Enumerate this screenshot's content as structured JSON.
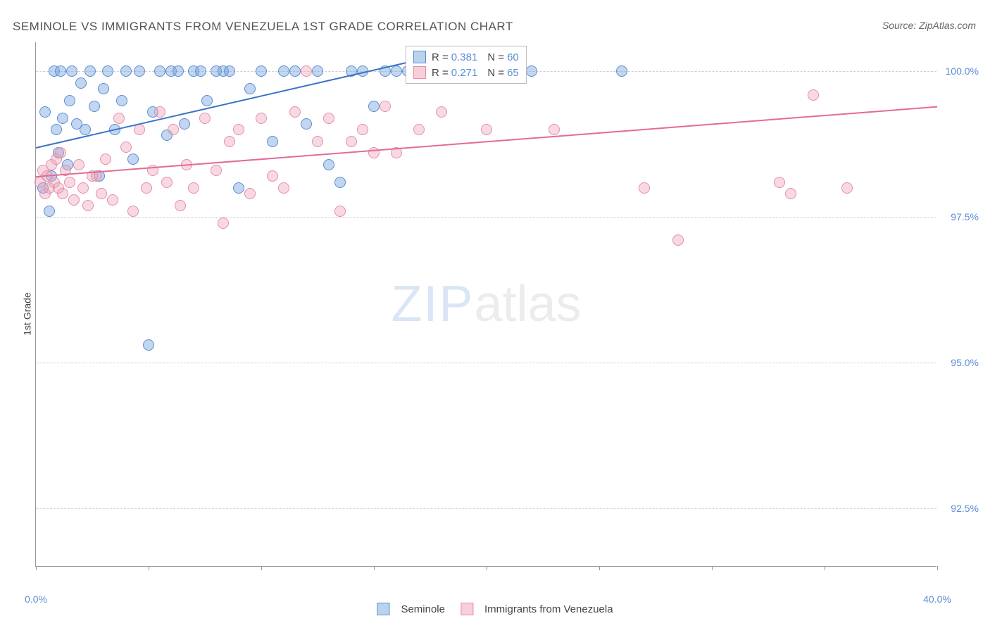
{
  "title": "SEMINOLE VS IMMIGRANTS FROM VENEZUELA 1ST GRADE CORRELATION CHART",
  "source": "Source: ZipAtlas.com",
  "ylabel": "1st Grade",
  "watermark": {
    "zip": "ZIP",
    "atlas": "atlas"
  },
  "chart": {
    "type": "scatter",
    "xlim": [
      0,
      40
    ],
    "ylim": [
      91.5,
      100.5
    ],
    "x_ticks": [
      0,
      5,
      10,
      15,
      20,
      25,
      30,
      35,
      40
    ],
    "x_tick_labels": {
      "0": "0.0%",
      "40": "40.0%"
    },
    "y_gridlines": [
      92.5,
      95.0,
      97.5,
      100.0
    ],
    "y_tick_labels": [
      "92.5%",
      "95.0%",
      "97.5%",
      "100.0%"
    ],
    "background_color": "#ffffff",
    "grid_color": "#d0d0d0",
    "axis_color": "#999999",
    "marker_radius": 8,
    "colors": {
      "blue_fill": "rgba(120,165,220,0.45)",
      "blue_stroke": "#5b8dd6",
      "pink_fill": "rgba(240,160,180,0.4)",
      "pink_stroke": "#e38faa"
    }
  },
  "series": [
    {
      "name": "Seminole",
      "color": "blue",
      "r": "0.381",
      "n": "60",
      "trend": {
        "x1": 0,
        "y1": 98.7,
        "x2": 18,
        "y2": 100.3
      },
      "points": [
        [
          0.3,
          98.0
        ],
        [
          0.4,
          99.3
        ],
        [
          0.6,
          97.6
        ],
        [
          0.7,
          98.2
        ],
        [
          0.8,
          100.0
        ],
        [
          0.9,
          99.0
        ],
        [
          1.0,
          98.6
        ],
        [
          1.1,
          100.0
        ],
        [
          1.2,
          99.2
        ],
        [
          1.4,
          98.4
        ],
        [
          1.5,
          99.5
        ],
        [
          1.6,
          100.0
        ],
        [
          1.8,
          99.1
        ],
        [
          2.0,
          99.8
        ],
        [
          2.2,
          99.0
        ],
        [
          2.4,
          100.0
        ],
        [
          2.6,
          99.4
        ],
        [
          2.8,
          98.2
        ],
        [
          3.0,
          99.7
        ],
        [
          3.2,
          100.0
        ],
        [
          3.5,
          99.0
        ],
        [
          3.8,
          99.5
        ],
        [
          4.0,
          100.0
        ],
        [
          4.3,
          98.5
        ],
        [
          4.6,
          100.0
        ],
        [
          5.0,
          95.3
        ],
        [
          5.2,
          99.3
        ],
        [
          5.5,
          100.0
        ],
        [
          5.8,
          98.9
        ],
        [
          6.0,
          100.0
        ],
        [
          6.3,
          100.0
        ],
        [
          6.6,
          99.1
        ],
        [
          7.0,
          100.0
        ],
        [
          7.3,
          100.0
        ],
        [
          7.6,
          99.5
        ],
        [
          8.0,
          100.0
        ],
        [
          8.3,
          100.0
        ],
        [
          8.6,
          100.0
        ],
        [
          9.0,
          98.0
        ],
        [
          9.5,
          99.7
        ],
        [
          10.0,
          100.0
        ],
        [
          10.5,
          98.8
        ],
        [
          11.0,
          100.0
        ],
        [
          11.5,
          100.0
        ],
        [
          12.0,
          99.1
        ],
        [
          12.5,
          100.0
        ],
        [
          13.0,
          98.4
        ],
        [
          13.5,
          98.1
        ],
        [
          14.0,
          100.0
        ],
        [
          14.5,
          100.0
        ],
        [
          15.0,
          99.4
        ],
        [
          15.5,
          100.0
        ],
        [
          16.0,
          100.0
        ],
        [
          16.5,
          100.0
        ],
        [
          17.0,
          100.0
        ],
        [
          18.0,
          100.0
        ],
        [
          19.0,
          100.0
        ],
        [
          20.0,
          100.0
        ],
        [
          22.0,
          100.0
        ],
        [
          26.0,
          100.0
        ]
      ]
    },
    {
      "name": "Immigrants from Venezuela",
      "color": "pink",
      "r": "0.271",
      "n": "65",
      "trend": {
        "x1": 0,
        "y1": 98.2,
        "x2": 40,
        "y2": 99.4
      },
      "points": [
        [
          0.2,
          98.1
        ],
        [
          0.3,
          98.3
        ],
        [
          0.4,
          97.9
        ],
        [
          0.5,
          98.2
        ],
        [
          0.6,
          98.0
        ],
        [
          0.7,
          98.4
        ],
        [
          0.8,
          98.1
        ],
        [
          0.9,
          98.5
        ],
        [
          1.0,
          98.0
        ],
        [
          1.1,
          98.6
        ],
        [
          1.2,
          97.9
        ],
        [
          1.3,
          98.3
        ],
        [
          1.5,
          98.1
        ],
        [
          1.7,
          97.8
        ],
        [
          1.9,
          98.4
        ],
        [
          2.1,
          98.0
        ],
        [
          2.3,
          97.7
        ],
        [
          2.5,
          98.2
        ],
        [
          2.7,
          98.2
        ],
        [
          2.9,
          97.9
        ],
        [
          3.1,
          98.5
        ],
        [
          3.4,
          97.8
        ],
        [
          3.7,
          99.2
        ],
        [
          4.0,
          98.7
        ],
        [
          4.3,
          97.6
        ],
        [
          4.6,
          99.0
        ],
        [
          4.9,
          98.0
        ],
        [
          5.2,
          98.3
        ],
        [
          5.5,
          99.3
        ],
        [
          5.8,
          98.1
        ],
        [
          6.1,
          99.0
        ],
        [
          6.4,
          97.7
        ],
        [
          6.7,
          98.4
        ],
        [
          7.0,
          98.0
        ],
        [
          7.5,
          99.2
        ],
        [
          8.0,
          98.3
        ],
        [
          8.3,
          97.4
        ],
        [
          8.6,
          98.8
        ],
        [
          9.0,
          99.0
        ],
        [
          9.5,
          97.9
        ],
        [
          10.0,
          99.2
        ],
        [
          10.5,
          98.2
        ],
        [
          11.0,
          98.0
        ],
        [
          11.5,
          99.3
        ],
        [
          12.0,
          100.0
        ],
        [
          12.5,
          98.8
        ],
        [
          13.0,
          99.2
        ],
        [
          13.5,
          97.6
        ],
        [
          14.0,
          98.8
        ],
        [
          14.5,
          99.0
        ],
        [
          15.0,
          98.6
        ],
        [
          15.5,
          99.4
        ],
        [
          16.0,
          98.6
        ],
        [
          17.0,
          99.0
        ],
        [
          18.0,
          99.3
        ],
        [
          19.0,
          100.0
        ],
        [
          20.0,
          99.0
        ],
        [
          21.0,
          100.0
        ],
        [
          23.0,
          99.0
        ],
        [
          27.0,
          98.0
        ],
        [
          28.5,
          97.1
        ],
        [
          33.0,
          98.1
        ],
        [
          33.5,
          97.9
        ],
        [
          34.5,
          99.6
        ],
        [
          36.0,
          98.0
        ]
      ]
    }
  ],
  "legend": {
    "items": [
      {
        "swatch": "blue",
        "label": "Seminole"
      },
      {
        "swatch": "pink",
        "label": "Immigrants from Venezuela"
      }
    ]
  }
}
